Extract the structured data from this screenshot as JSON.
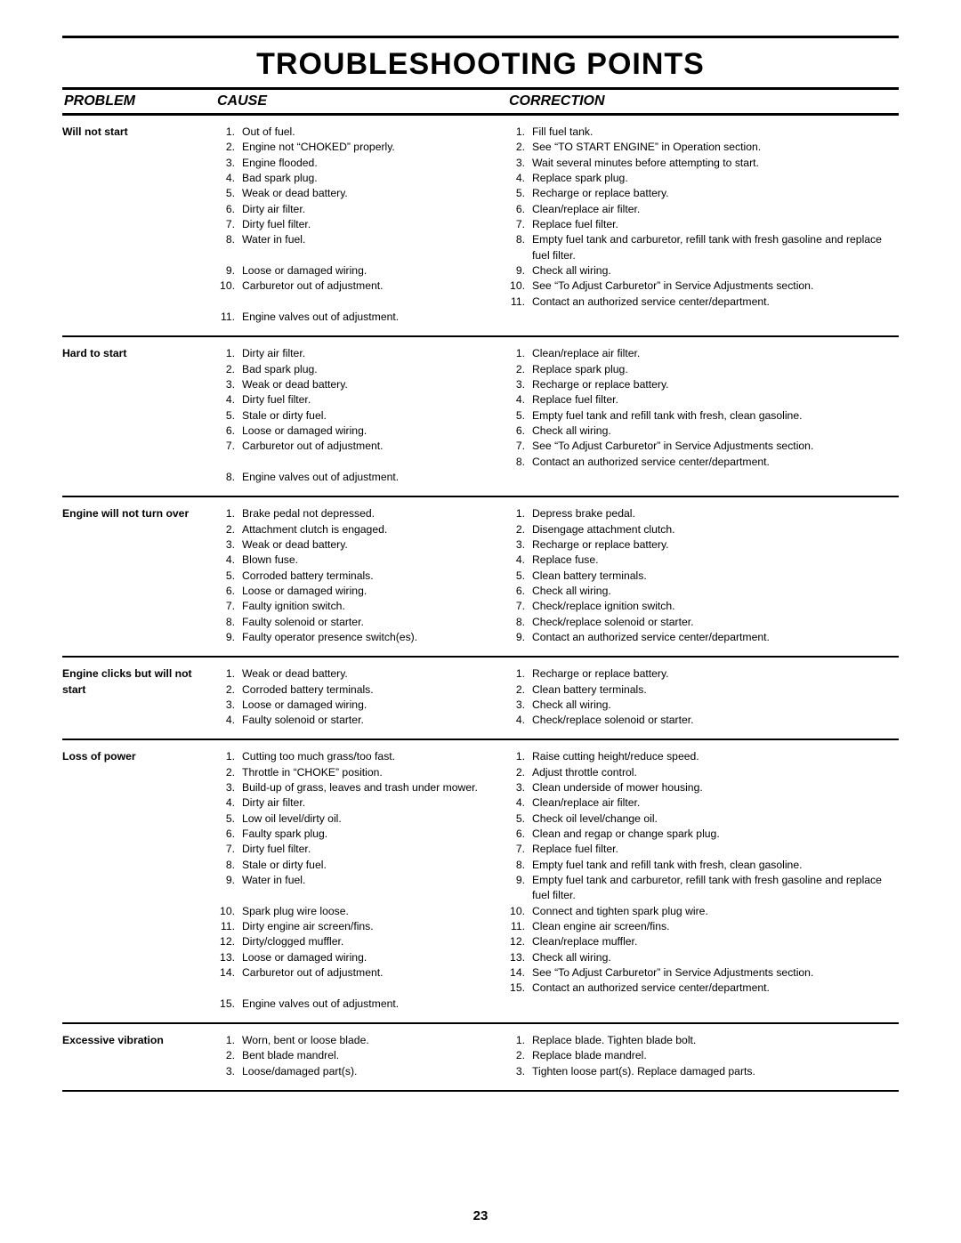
{
  "title": "TROUBLESHOOTING POINTS",
  "headers": {
    "problem": "PROBLEM",
    "cause": "CAUSE",
    "correction": "CORRECTION"
  },
  "page_number": "23",
  "sections": [
    {
      "problem": "Will not start",
      "causes": [
        {
          "n": "1.",
          "t": "Out of fuel."
        },
        {
          "n": "2.",
          "t": "Engine not “CHOKED” properly."
        },
        {
          "n": "3.",
          "t": "Engine flooded."
        },
        {
          "n": "4.",
          "t": "Bad spark plug."
        },
        {
          "n": "5.",
          "t": "Weak or dead battery."
        },
        {
          "n": "6.",
          "t": "Dirty air filter."
        },
        {
          "n": "7.",
          "t": "Dirty fuel filter."
        },
        {
          "n": "8.",
          "t": "Water in fuel."
        },
        {
          "n": "",
          "t": ""
        },
        {
          "n": "9.",
          "t": "Loose or damaged wiring."
        },
        {
          "n": "10.",
          "t": "Carburetor out of adjustment."
        },
        {
          "n": "",
          "t": ""
        },
        {
          "n": "11.",
          "t": "Engine valves out of adjustment."
        }
      ],
      "corrections": [
        {
          "n": "1.",
          "t": "Fill fuel tank."
        },
        {
          "n": "2.",
          "t": "See “TO START ENGINE” in Operation section."
        },
        {
          "n": "3.",
          "t": "Wait several minutes before attempting to start."
        },
        {
          "n": "4.",
          "t": "Replace spark plug."
        },
        {
          "n": "5.",
          "t": "Recharge or replace battery."
        },
        {
          "n": "6.",
          "t": "Clean/replace air filter."
        },
        {
          "n": "7.",
          "t": "Replace fuel filter."
        },
        {
          "n": "8.",
          "t": "Empty fuel tank and carburetor, refill tank with fresh gasoline and replace fuel filter."
        },
        {
          "n": "9.",
          "t": "Check all wiring."
        },
        {
          "n": "10.",
          "t": "See “To Adjust Carburetor” in Service Adjustments section."
        },
        {
          "n": "11.",
          "t": "Contact an authorized service center/department."
        }
      ]
    },
    {
      "problem": "Hard to start",
      "causes": [
        {
          "n": "1.",
          "t": "Dirty air filter."
        },
        {
          "n": "2.",
          "t": "Bad spark plug."
        },
        {
          "n": "3.",
          "t": "Weak or dead battery."
        },
        {
          "n": "4.",
          "t": "Dirty fuel filter."
        },
        {
          "n": "5.",
          "t": "Stale or dirty fuel."
        },
        {
          "n": "6.",
          "t": "Loose or damaged wiring."
        },
        {
          "n": "7.",
          "t": "Carburetor out of adjustment."
        },
        {
          "n": "",
          "t": ""
        },
        {
          "n": "8.",
          "t": "Engine valves out of adjustment."
        }
      ],
      "corrections": [
        {
          "n": "1.",
          "t": "Clean/replace air filter."
        },
        {
          "n": "2.",
          "t": "Replace spark plug."
        },
        {
          "n": "3.",
          "t": "Recharge or replace battery."
        },
        {
          "n": "4.",
          "t": "Replace fuel filter."
        },
        {
          "n": "5.",
          "t": "Empty fuel tank and refill tank with fresh, clean gasoline."
        },
        {
          "n": "6.",
          "t": "Check all wiring."
        },
        {
          "n": "7.",
          "t": "See “To Adjust Carburetor” in Service Adjustments section."
        },
        {
          "n": "8.",
          "t": "Contact an authorized service center/department."
        }
      ]
    },
    {
      "problem": "Engine will not turn over",
      "causes": [
        {
          "n": "1.",
          "t": "Brake pedal not depressed."
        },
        {
          "n": "2.",
          "t": "Attachment clutch is engaged."
        },
        {
          "n": "3.",
          "t": "Weak or dead battery."
        },
        {
          "n": "4.",
          "t": "Blown fuse."
        },
        {
          "n": "5.",
          "t": "Corroded battery terminals."
        },
        {
          "n": "6.",
          "t": "Loose or damaged wiring."
        },
        {
          "n": "7.",
          "t": "Faulty ignition switch."
        },
        {
          "n": "8.",
          "t": "Faulty solenoid or starter."
        },
        {
          "n": "9.",
          "t": "Faulty operator presence switch(es)."
        }
      ],
      "corrections": [
        {
          "n": "1.",
          "t": "Depress brake pedal."
        },
        {
          "n": "2.",
          "t": "Disengage attachment clutch."
        },
        {
          "n": "3.",
          "t": "Recharge or replace battery."
        },
        {
          "n": "4.",
          "t": "Replace fuse."
        },
        {
          "n": "5.",
          "t": "Clean battery terminals."
        },
        {
          "n": "6.",
          "t": "Check all wiring."
        },
        {
          "n": "7.",
          "t": "Check/replace ignition switch."
        },
        {
          "n": "8.",
          "t": "Check/replace solenoid or starter."
        },
        {
          "n": "9.",
          "t": "Contact an authorized service center/department."
        }
      ]
    },
    {
      "problem": "Engine clicks but will not start",
      "causes": [
        {
          "n": "1.",
          "t": "Weak or dead battery."
        },
        {
          "n": "2.",
          "t": "Corroded battery terminals."
        },
        {
          "n": "3.",
          "t": "Loose or damaged wiring."
        },
        {
          "n": "4.",
          "t": "Faulty solenoid or starter."
        }
      ],
      "corrections": [
        {
          "n": "1.",
          "t": "Recharge or replace battery."
        },
        {
          "n": "2.",
          "t": "Clean battery terminals."
        },
        {
          "n": "3.",
          "t": "Check all wiring."
        },
        {
          "n": "4.",
          "t": "Check/replace solenoid or starter."
        }
      ]
    },
    {
      "problem": "Loss of power",
      "causes": [
        {
          "n": "1.",
          "t": "Cutting too much grass/too fast."
        },
        {
          "n": "2.",
          "t": "Throttle in “CHOKE” position."
        },
        {
          "n": "3.",
          "t": "Build-up of grass, leaves and trash under mower."
        },
        {
          "n": "4.",
          "t": "Dirty air filter."
        },
        {
          "n": "5.",
          "t": "Low oil level/dirty oil."
        },
        {
          "n": "6.",
          "t": "Faulty spark plug."
        },
        {
          "n": "7.",
          "t": "Dirty fuel filter."
        },
        {
          "n": "8.",
          "t": "Stale or dirty fuel."
        },
        {
          "n": "9.",
          "t": "Water in fuel."
        },
        {
          "n": "",
          "t": ""
        },
        {
          "n": "10.",
          "t": "Spark plug wire loose."
        },
        {
          "n": "11.",
          "t": "Dirty engine air screen/fins."
        },
        {
          "n": "12.",
          "t": "Dirty/clogged muffler."
        },
        {
          "n": "13.",
          "t": "Loose or damaged wiring."
        },
        {
          "n": "14.",
          "t": "Carburetor out of adjustment."
        },
        {
          "n": "",
          "t": ""
        },
        {
          "n": "15.",
          "t": "Engine valves out of adjustment."
        }
      ],
      "corrections": [
        {
          "n": "1.",
          "t": "Raise cutting height/reduce speed."
        },
        {
          "n": "2.",
          "t": "Adjust throttle control."
        },
        {
          "n": "3.",
          "t": "Clean underside of mower housing."
        },
        {
          "n": "4.",
          "t": "Clean/replace air filter."
        },
        {
          "n": "5.",
          "t": "Check oil level/change oil."
        },
        {
          "n": "6.",
          "t": "Clean and regap or change spark plug."
        },
        {
          "n": "7.",
          "t": "Replace fuel filter."
        },
        {
          "n": "8.",
          "t": "Empty fuel tank and refill tank with fresh, clean gasoline."
        },
        {
          "n": "9.",
          "t": "Empty fuel tank and carburetor, refill tank with fresh gasoline and replace fuel filter."
        },
        {
          "n": "10.",
          "t": "Connect and tighten spark plug wire."
        },
        {
          "n": "11.",
          "t": "Clean engine air screen/fins."
        },
        {
          "n": "12.",
          "t": "Clean/replace muffler."
        },
        {
          "n": "13.",
          "t": "Check all wiring."
        },
        {
          "n": "14.",
          "t": "See “To Adjust Carburetor” in Service Adjustments section."
        },
        {
          "n": "15.",
          "t": "Contact an authorized service center/department."
        }
      ]
    },
    {
      "problem": "Excessive vibration",
      "causes": [
        {
          "n": "1.",
          "t": "Worn, bent or loose blade."
        },
        {
          "n": "2.",
          "t": "Bent blade mandrel."
        },
        {
          "n": "3.",
          "t": "Loose/damaged part(s)."
        }
      ],
      "corrections": [
        {
          "n": "1.",
          "t": "Replace blade.  Tighten blade bolt."
        },
        {
          "n": "2.",
          "t": "Replace blade mandrel."
        },
        {
          "n": "3.",
          "t": "Tighten loose part(s).  Replace damaged parts."
        }
      ]
    }
  ]
}
